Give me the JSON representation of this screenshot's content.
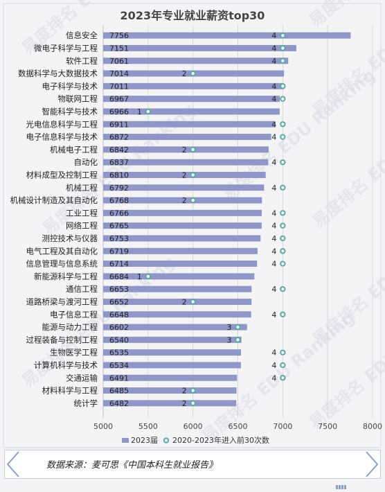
{
  "chart_data": {
    "type": "bar",
    "orientation": "horizontal",
    "title": "2023年专业就业薪资top30",
    "categories": [
      "信息安全",
      "微电子科学与工程",
      "软件工程",
      "数据科学与大数据技术",
      "电子科学与技术",
      "物联网工程",
      "智能科学与技术",
      "光电信息科学与工程",
      "电子信息科学与技术",
      "机械电子工程",
      "自动化",
      "材料成型及控制工程",
      "机械工程",
      "机械设计制造及其自动化",
      "工业工程",
      "网络工程",
      "测控技术与仪器",
      "电气工程及其自动化",
      "信息管理与信息系统",
      "新能源科学与工程",
      "通信工程",
      "道路桥梁与渡河工程",
      "电子信息工程",
      "能源与动力工程",
      "过程装备与控制工程",
      "生物医学工程",
      "计算机科学与技术",
      "交通运输",
      "材料科学与工程",
      "统计学"
    ],
    "series": [
      {
        "name": "2023届",
        "color": "#8f96c8",
        "values": [
          7756,
          7151,
          7061,
          7014,
          7011,
          6967,
          6966,
          6911,
          6872,
          6842,
          6837,
          6810,
          6792,
          6768,
          6766,
          6765,
          6753,
          6719,
          6714,
          6684,
          6653,
          6652,
          6648,
          6602,
          6540,
          6535,
          6534,
          6491,
          6485,
          6482
        ]
      },
      {
        "name": "2020-2023年进入前30次数",
        "color": "#5aa9a4",
        "values": [
          4,
          4,
          4,
          2,
          4,
          4,
          1,
          4,
          4,
          2,
          4,
          2,
          4,
          2,
          4,
          4,
          4,
          4,
          4,
          1,
          4,
          2,
          4,
          3,
          3,
          4,
          4,
          4,
          2,
          2
        ]
      }
    ],
    "x_ticks": [
      5000,
      5500,
      6000,
      6500,
      7000,
      7500,
      8000
    ],
    "xlim": [
      5000,
      8000
    ],
    "grid": true,
    "legend_position": "bottom"
  },
  "source": "数据来源：麦可思《中国本科生就业报告》",
  "watermark": "易度排名 EDU Ranking"
}
